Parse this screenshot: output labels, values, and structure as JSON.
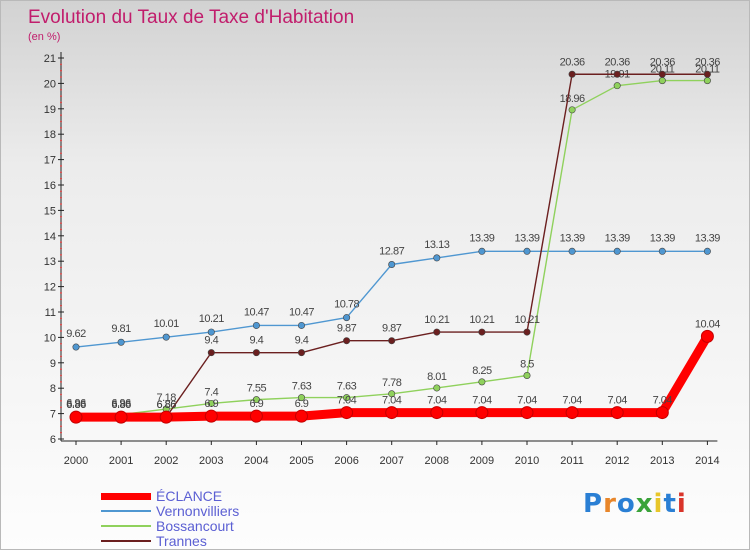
{
  "header": {
    "title": "Evolution du Taux de Taxe d'Habitation",
    "subtitle": "(en %)"
  },
  "logo": {
    "text": "Proxiti",
    "colors": [
      "#2a7fd4",
      "#e8862a",
      "#2a7fd4",
      "#3aa33a",
      "#e8c62a",
      "#2a7fd4",
      "#d9342a"
    ]
  },
  "chart_data": {
    "type": "line",
    "title": "Evolution du Taux de Taxe d'Habitation",
    "subtitle": "(en %)",
    "xlabel": "",
    "ylabel": "",
    "x": [
      "2000",
      "2001",
      "2002",
      "2003",
      "2004",
      "2005",
      "2006",
      "2007",
      "2008",
      "2009",
      "2010",
      "2011",
      "2012",
      "2013",
      "2014"
    ],
    "ylim": [
      6,
      21
    ],
    "yticks": [
      6,
      7,
      8,
      9,
      10,
      11,
      12,
      13,
      14,
      15,
      16,
      17,
      18,
      19,
      20,
      21
    ],
    "grid": false,
    "legend": "bottom-left",
    "series": [
      {
        "name": "ÉCLANCE",
        "color": "#ff0000",
        "values": [
          6.86,
          6.86,
          6.86,
          6.9,
          6.9,
          6.9,
          7.04,
          7.04,
          7.04,
          7.04,
          7.04,
          7.04,
          7.04,
          7.04,
          10.04
        ],
        "labels": [
          "6.86",
          "6.86",
          "6.86",
          "6.9",
          "6.9",
          "6.9",
          "7.04",
          "7.04",
          "7.04",
          "7.04",
          "7.04",
          "7.04",
          "7.04",
          "7.04",
          "10.04"
        ]
      },
      {
        "name": "Vernonvilliers",
        "color": "#4f97d1",
        "values": [
          9.62,
          9.81,
          10.01,
          10.21,
          10.47,
          10.47,
          10.78,
          12.87,
          13.13,
          13.39,
          13.39,
          13.39,
          13.39,
          13.39,
          13.39
        ],
        "labels": [
          "9.62",
          "9.81",
          "10.01",
          "10.21",
          "10.47",
          "10.47",
          "10.78",
          "12.87",
          "13.13",
          "13.39",
          "13.39",
          "13.39",
          "13.39",
          "13.39",
          "13.39"
        ]
      },
      {
        "name": "Bossancourt",
        "color": "#8fd15c",
        "values": [
          6.96,
          6.96,
          7.18,
          7.4,
          7.55,
          7.63,
          7.63,
          7.78,
          8.01,
          8.25,
          8.5,
          18.96,
          19.91,
          20.11,
          20.11
        ],
        "labels": [
          "6.96",
          "6.96",
          "7.18",
          "7.4",
          "7.55",
          "7.63",
          "7.63",
          "7.78",
          "8.01",
          "8.25",
          "8.5",
          "18.96",
          "19.91",
          "20.11",
          "20.11"
        ]
      },
      {
        "name": "Trannes",
        "color": "#6b1f1f",
        "values": [
          6.86,
          6.86,
          6.86,
          9.4,
          9.4,
          9.4,
          9.87,
          9.87,
          10.21,
          10.21,
          10.21,
          20.36,
          20.36,
          20.36,
          20.36
        ],
        "labels": [
          "6.86",
          "6.86",
          "6.86",
          "9.4",
          "9.4",
          "9.4",
          "9.87",
          "9.87",
          "10.21",
          "10.21",
          "10.21",
          "20.36",
          "20.36",
          "20.36",
          "20.36"
        ]
      }
    ]
  }
}
